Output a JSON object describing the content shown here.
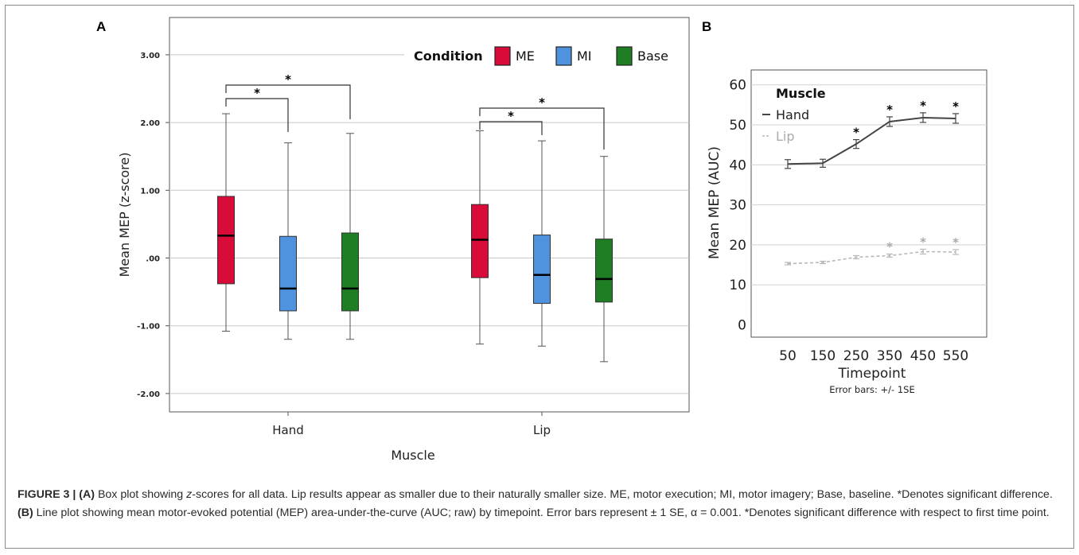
{
  "figure": {
    "caption": {
      "figure_label": "FIGURE 3 |",
      "a_label": "(A)",
      "a_text_1": " Box plot showing ",
      "a_text_z": "z",
      "a_text_2": "-scores for all data. Lip results appear as smaller due to their naturally smaller size. ME, motor execution; MI, motor imagery; Base, baseline. *Denotes significant difference. ",
      "b_label": "(B)",
      "b_text": " Line plot showing mean motor-evoked potential (MEP) area-under-the-curve (AUC; raw) by timepoint. Error bars represent ± 1 SE, α = 0.001. *Denotes significant difference with respect to first time point."
    }
  },
  "chart_data": [
    {
      "panel": "A",
      "type": "box",
      "xlabel": "Muscle",
      "ylabel": "Mean MEP (z-score)",
      "ylim": [
        -2.3,
        3.3
      ],
      "yticks": [
        -2,
        -1,
        0,
        1,
        2,
        3
      ],
      "ytick_labels": [
        "-2.00",
        "-1.00",
        ".00",
        "1.00",
        "2.00",
        "3.00"
      ],
      "grid": true,
      "legend": {
        "title": "Condition",
        "position": "top-right",
        "entries": [
          "ME",
          "MI",
          "Base"
        ]
      },
      "colors": {
        "ME": "#d90b39",
        "MI": "#4f92dd",
        "Base": "#1f7d24"
      },
      "categories": [
        "Hand",
        "Lip"
      ],
      "boxes": [
        {
          "group": "Hand",
          "condition": "ME",
          "min": -1.08,
          "q1": -0.38,
          "median": 0.33,
          "q3": 0.91,
          "max": 2.13
        },
        {
          "group": "Hand",
          "condition": "MI",
          "min": -1.2,
          "q1": -0.78,
          "median": -0.45,
          "q3": 0.32,
          "max": 1.7
        },
        {
          "group": "Hand",
          "condition": "Base",
          "min": -1.2,
          "q1": -0.78,
          "median": -0.45,
          "q3": 0.37,
          "max": 1.84
        },
        {
          "group": "Lip",
          "condition": "ME",
          "min": -1.27,
          "q1": -0.29,
          "median": 0.27,
          "q3": 0.79,
          "max": 1.88
        },
        {
          "group": "Lip",
          "condition": "MI",
          "min": -1.3,
          "q1": -0.67,
          "median": -0.25,
          "q3": 0.34,
          "max": 1.73
        },
        {
          "group": "Lip",
          "condition": "Base",
          "min": -1.53,
          "q1": -0.65,
          "median": -0.31,
          "q3": 0.28,
          "max": 1.5
        }
      ],
      "significance": [
        {
          "group": "Hand",
          "from": "ME",
          "to": "MI",
          "label": "*"
        },
        {
          "group": "Hand",
          "from": "ME",
          "to": "Base",
          "label": "*"
        },
        {
          "group": "Lip",
          "from": "ME",
          "to": "MI",
          "label": "*"
        },
        {
          "group": "Lip",
          "from": "ME",
          "to": "Base",
          "label": "*"
        }
      ]
    },
    {
      "panel": "B",
      "type": "line",
      "xlabel": "Timepoint",
      "ylabel": "Mean MEP (AUC)",
      "ylim": [
        0,
        62
      ],
      "yticks": [
        0,
        10,
        20,
        30,
        40,
        50,
        60
      ],
      "grid": true,
      "note": "Error bars: +/- 1SE",
      "legend": {
        "title": "Muscle",
        "position": "top-left",
        "entries": [
          "Hand",
          "Lip"
        ]
      },
      "x": [
        50,
        150,
        250,
        350,
        450,
        550
      ],
      "series": [
        {
          "name": "Hand",
          "style": "solid",
          "color": "#444444",
          "values": [
            40.2,
            40.4,
            45.2,
            50.8,
            51.8,
            51.6
          ],
          "se": [
            1.1,
            1.0,
            1.1,
            1.2,
            1.2,
            1.2
          ],
          "significant": [
            false,
            false,
            true,
            true,
            true,
            true
          ],
          "star_color": "#000000"
        },
        {
          "name": "Lip",
          "style": "dashed",
          "color": "#b8b8b8",
          "values": [
            15.3,
            15.6,
            16.9,
            17.3,
            18.3,
            18.2
          ],
          "se": [
            0.3,
            0.3,
            0.4,
            0.4,
            0.6,
            0.6
          ],
          "significant": [
            false,
            false,
            false,
            true,
            true,
            true
          ],
          "star_color": "#aaaaaa"
        }
      ]
    }
  ]
}
